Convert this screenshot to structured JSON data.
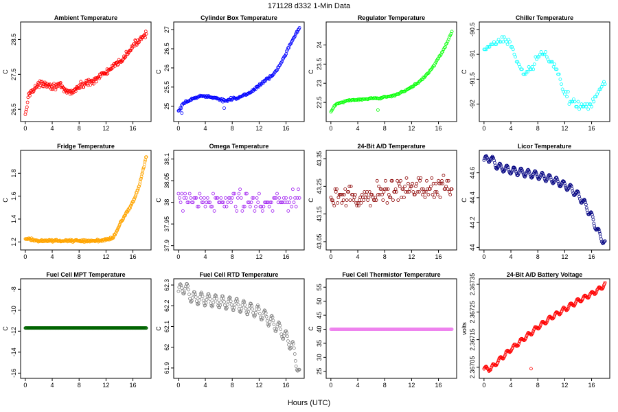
{
  "figure": {
    "title": "171128   d332   1-Min Data",
    "xlabel": "Hours (UTC)"
  },
  "chart_data": [
    {
      "type": "scatter",
      "title": "Ambient Temperature",
      "ylabel": "C",
      "color": "#ff0000",
      "xlim": [
        -0.7,
        18.7
      ],
      "ylim": [
        26.15,
        29.0
      ],
      "xticks": [
        0,
        4,
        8,
        12,
        16
      ],
      "yticks": [
        26.5,
        27.5,
        28.5
      ],
      "series": [
        {
          "x": [
            0,
            0.5,
            1,
            2,
            3,
            4,
            5,
            6,
            7,
            8,
            9,
            10,
            11,
            12,
            13,
            14,
            15,
            16,
            17,
            18
          ],
          "y": [
            26.3,
            26.9,
            27.05,
            27.2,
            27.25,
            27.15,
            27.2,
            27.0,
            27.0,
            27.15,
            27.25,
            27.3,
            27.45,
            27.55,
            27.7,
            27.85,
            28.05,
            28.3,
            28.5,
            28.7
          ]
        }
      ],
      "noise": 0.13,
      "density": 12
    },
    {
      "type": "scatter",
      "title": "Cylinder Box Temperature",
      "ylabel": "C",
      "color": "#0000ff",
      "xlim": [
        -0.7,
        18.7
      ],
      "ylim": [
        24.6,
        27.2
      ],
      "xticks": [
        0,
        4,
        8,
        12,
        16
      ],
      "yticks": [
        25.0,
        25.5,
        26.0,
        26.5,
        27.0
      ],
      "series": [
        {
          "x": [
            0,
            0.5,
            1,
            2,
            3,
            4,
            5,
            6,
            7,
            8,
            9,
            10,
            11,
            12,
            13,
            14,
            15,
            16,
            17,
            18
          ],
          "y": [
            24.85,
            25.0,
            25.1,
            25.18,
            25.25,
            25.28,
            25.22,
            25.18,
            25.15,
            25.2,
            25.22,
            25.3,
            25.4,
            25.55,
            25.68,
            25.8,
            26.05,
            26.4,
            26.75,
            27.05
          ]
        }
      ],
      "noise": 0.05,
      "density": 10,
      "outliers": [
        {
          "x": 0.5,
          "y": 24.82
        },
        {
          "x": 6.8,
          "y": 24.95
        }
      ]
    },
    {
      "type": "scatter",
      "title": "Regulator Temperature",
      "ylabel": "C",
      "color": "#00ff00",
      "xlim": [
        -0.7,
        18.7
      ],
      "ylim": [
        22.0,
        24.6
      ],
      "xticks": [
        0,
        4,
        8,
        12,
        16
      ],
      "yticks": [
        22.5,
        23.0,
        23.5,
        24.0
      ],
      "series": [
        {
          "x": [
            0,
            0.5,
            1,
            2,
            3,
            4,
            5,
            6,
            7,
            8,
            9,
            10,
            11,
            12,
            13,
            14,
            15,
            16,
            17,
            18
          ],
          "y": [
            22.25,
            22.4,
            22.47,
            22.52,
            22.56,
            22.57,
            22.58,
            22.6,
            22.6,
            22.64,
            22.67,
            22.72,
            22.8,
            22.9,
            23.02,
            23.18,
            23.38,
            23.65,
            23.95,
            24.35
          ]
        }
      ],
      "noise": 0.03,
      "density": 8,
      "outliers": [
        {
          "x": 7.0,
          "y": 22.3
        }
      ]
    },
    {
      "type": "scatter",
      "title": "Chiller Temperature",
      "ylabel": "C",
      "color": "#00ffff",
      "xlim": [
        -0.7,
        18.7
      ],
      "ylim": [
        -92.35,
        -90.35
      ],
      "xticks": [
        0,
        4,
        8,
        12,
        16
      ],
      "yticks": [
        -92.0,
        -91.5,
        -91.0,
        -90.5
      ],
      "series": [
        {
          "x": [
            0,
            0.5,
            1,
            2,
            3,
            4,
            5,
            6,
            7,
            8,
            9,
            10,
            11,
            12,
            13,
            14,
            15,
            16,
            17,
            18
          ],
          "y": [
            -90.95,
            -90.9,
            -90.85,
            -90.75,
            -90.65,
            -90.8,
            -91.2,
            -91.4,
            -91.3,
            -91.0,
            -91.0,
            -91.15,
            -91.35,
            -91.75,
            -91.95,
            -92.0,
            -92.05,
            -92.0,
            -91.75,
            -91.55
          ]
        }
      ],
      "noise": 0.12,
      "density": 6,
      "quantize": 0.05
    },
    {
      "type": "scatter",
      "title": "Fridge Temperature",
      "ylabel": "C",
      "color": "#ffa500",
      "xlim": [
        -0.7,
        18.7
      ],
      "ylim": [
        1.13,
        2.0
      ],
      "xticks": [
        0,
        4,
        8,
        12,
        16
      ],
      "yticks": [
        1.2,
        1.4,
        1.6,
        1.8
      ],
      "series": [
        {
          "x": [
            0,
            1,
            2,
            3,
            4,
            5,
            6,
            7,
            8,
            9,
            10,
            11,
            12,
            13,
            13.5,
            14,
            15,
            16,
            17,
            18
          ],
          "y": [
            1.23,
            1.22,
            1.21,
            1.21,
            1.21,
            1.21,
            1.21,
            1.21,
            1.21,
            1.21,
            1.21,
            1.21,
            1.22,
            1.24,
            1.28,
            1.35,
            1.45,
            1.55,
            1.7,
            1.95
          ]
        }
      ],
      "noise": 0.015,
      "density": 14
    },
    {
      "type": "scatter",
      "title": "Omega Temperature",
      "ylabel": "C",
      "color": "#a020f0",
      "xlim": [
        -0.7,
        18.7
      ],
      "ylim": [
        37.89,
        38.12
      ],
      "xticks": [
        0,
        4,
        8,
        12,
        16
      ],
      "yticks": [
        37.9,
        37.95,
        38.0,
        38.05,
        38.1
      ],
      "series": [
        {
          "x": [
            0,
            4,
            8,
            12,
            16,
            18
          ],
          "y": [
            38.0,
            38.0,
            38.0,
            38.0,
            38.0,
            38.0
          ]
        }
      ],
      "noise": 0.04,
      "density": 6,
      "quantize": 0.01
    },
    {
      "type": "scatter",
      "title": "24-Bit A/D Temperature",
      "ylabel": "C",
      "color": "#8b0000",
      "xlim": [
        -0.7,
        18.7
      ],
      "ylim": [
        43.02,
        43.38
      ],
      "xticks": [
        0,
        4,
        8,
        12,
        16
      ],
      "yticks": [
        43.05,
        43.15,
        43.25,
        43.35
      ],
      "series": [
        {
          "x": [
            0,
            2,
            4,
            6,
            8,
            10,
            12,
            14,
            16,
            18
          ],
          "y": [
            43.2,
            43.22,
            43.2,
            43.22,
            43.23,
            43.24,
            43.24,
            43.25,
            43.25,
            43.25
          ]
        }
      ],
      "noise": 0.06,
      "density": 8,
      "quantize": 0.01
    },
    {
      "type": "scatter",
      "title": "Licor Temperature",
      "ylabel": "C",
      "color": "#000080",
      "xlim": [
        -0.7,
        18.7
      ],
      "ylim": [
        43.98,
        44.78
      ],
      "xticks": [
        0,
        4,
        8,
        12,
        16
      ],
      "yticks": [
        44.0,
        44.2,
        44.4,
        44.6
      ],
      "series": [
        {
          "x": [
            0,
            1,
            2,
            4,
            6,
            8,
            10,
            12,
            13,
            14,
            15,
            16,
            17,
            18
          ],
          "y": [
            44.7,
            44.72,
            44.65,
            44.62,
            44.6,
            44.58,
            44.55,
            44.5,
            44.47,
            44.42,
            44.35,
            44.25,
            44.12,
            44.03
          ]
        }
      ],
      "noise": 0.005,
      "density": 12,
      "wave": 0.03
    },
    {
      "type": "scatter",
      "title": "Fuel Cell MPT Temperature",
      "ylabel": "C",
      "color": "#006400",
      "xlim": [
        -0.7,
        18.7
      ],
      "ylim": [
        -16.5,
        -7.0
      ],
      "xticks": [
        0,
        4,
        8,
        12,
        16
      ],
      "yticks": [
        -16,
        -14,
        -12,
        -10,
        -8
      ],
      "series": [
        {
          "x": [
            0,
            18
          ],
          "y": [
            -11.7,
            -11.7
          ]
        }
      ],
      "noise": 0.0,
      "density": 14
    },
    {
      "type": "scatter",
      "title": "Fuel Cell RTD Temperature",
      "ylabel": "C",
      "color": "#808080",
      "xlim": [
        -0.7,
        18.7
      ],
      "ylim": [
        61.85,
        62.33
      ],
      "xticks": [
        0,
        4,
        8,
        12,
        16
      ],
      "yticks": [
        61.9,
        62.0,
        62.1,
        62.2,
        62.3
      ],
      "series": [
        {
          "x": [
            0,
            1,
            2,
            4,
            6,
            8,
            10,
            12,
            14,
            15,
            16,
            17,
            18
          ],
          "y": [
            62.27,
            62.29,
            62.24,
            62.23,
            62.22,
            62.21,
            62.19,
            62.17,
            62.12,
            62.09,
            62.05,
            62.0,
            61.87
          ]
        }
      ],
      "noise": 0.003,
      "density": 10,
      "wave": 0.03
    },
    {
      "type": "scatter",
      "title": "Fuel Cell Thermistor Temperature",
      "ylabel": "C",
      "color": "#ee82ee",
      "xlim": [
        -0.7,
        18.7
      ],
      "ylim": [
        22.5,
        58.0
      ],
      "xticks": [
        0,
        4,
        8,
        12,
        16
      ],
      "yticks": [
        25,
        30,
        35,
        40,
        45,
        50,
        55
      ],
      "series": [
        {
          "x": [
            0,
            18
          ],
          "y": [
            40.0,
            40.0
          ]
        }
      ],
      "noise": 0.0,
      "density": 14
    },
    {
      "type": "scatter",
      "title": "24-Bit A/D Battery Voltage",
      "ylabel": "volts",
      "color": "#ff0000",
      "xlim": [
        -0.7,
        18.7
      ],
      "ylim": [
        2.36701,
        2.36737
      ],
      "xticks": [
        0,
        4,
        8,
        12,
        16
      ],
      "yticks": [
        2.36705,
        2.36715,
        2.36725,
        2.36735
      ],
      "series": [
        {
          "x": [
            0,
            1,
            2,
            4,
            6,
            8,
            10,
            12,
            14,
            16,
            17,
            18
          ],
          "y": [
            2.367045,
            2.367045,
            2.36707,
            2.367115,
            2.367155,
            2.367195,
            2.36723,
            2.36726,
            2.36729,
            2.367315,
            2.36733,
            2.36735
          ]
        }
      ],
      "noise": 2e-06,
      "density": 12,
      "wave": 8e-06,
      "outliers": [
        {
          "x": 7.0,
          "y": 2.367045
        }
      ]
    }
  ]
}
